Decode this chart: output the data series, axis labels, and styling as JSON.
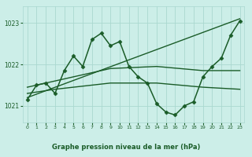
{
  "bg_color": "#cceee8",
  "grid_color": "#aad8d0",
  "line_color": "#1a5c28",
  "ylim": [
    1020.6,
    1023.4
  ],
  "xlim": [
    -0.5,
    23.5
  ],
  "yticks": [
    1021,
    1022,
    1023
  ],
  "xticks": [
    0,
    1,
    2,
    3,
    4,
    5,
    6,
    7,
    8,
    9,
    10,
    11,
    12,
    13,
    14,
    15,
    16,
    17,
    18,
    19,
    20,
    21,
    22,
    23
  ],
  "xlabel": "Graphe pression niveau de la mer (hPa)",
  "lines": [
    {
      "x": [
        0,
        1,
        2,
        3,
        4,
        5,
        6,
        7,
        8,
        9,
        10,
        11,
        12,
        13,
        14,
        15,
        16,
        17,
        18,
        19,
        20,
        21,
        22,
        23
      ],
      "y": [
        1021.15,
        1021.5,
        1021.55,
        1021.3,
        1021.85,
        1022.2,
        1021.95,
        1022.6,
        1022.75,
        1022.45,
        1022.55,
        1021.95,
        1021.7,
        1021.55,
        1021.05,
        1020.85,
        1020.78,
        1021.0,
        1021.1,
        1021.7,
        1021.95,
        1022.15,
        1022.7,
        1023.05
      ],
      "marker": "D",
      "markersize": 2.5,
      "linewidth": 1.1
    },
    {
      "x": [
        0,
        23
      ],
      "y": [
        1021.2,
        1023.1
      ],
      "marker": null,
      "linewidth": 1.0
    },
    {
      "x": [
        0,
        3,
        9,
        14,
        19,
        23
      ],
      "y": [
        1021.45,
        1021.6,
        1021.9,
        1021.95,
        1021.85,
        1021.85
      ],
      "marker": null,
      "linewidth": 1.0
    },
    {
      "x": [
        0,
        3,
        9,
        14,
        19,
        23
      ],
      "y": [
        1021.3,
        1021.4,
        1021.55,
        1021.55,
        1021.45,
        1021.4
      ],
      "marker": null,
      "linewidth": 1.0
    }
  ]
}
